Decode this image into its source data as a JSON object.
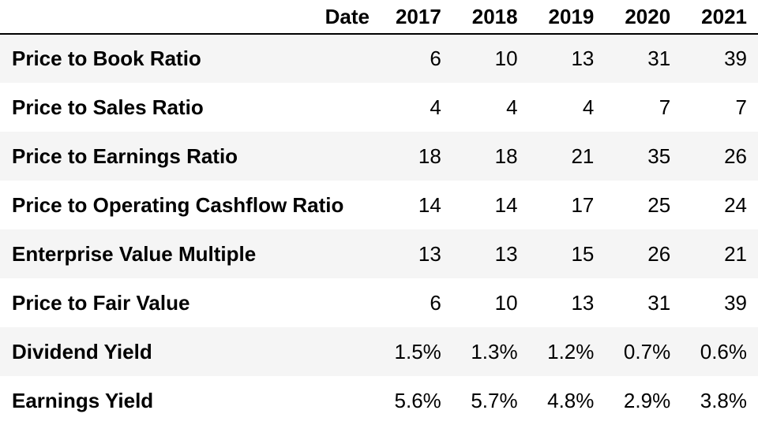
{
  "table": {
    "index_header": "Date",
    "columns": [
      "2017",
      "2018",
      "2019",
      "2020",
      "2021"
    ],
    "rows": [
      {
        "label": "Price to Book Ratio",
        "values": [
          "6",
          "10",
          "13",
          "31",
          "39"
        ]
      },
      {
        "label": "Price to Sales Ratio",
        "values": [
          "4",
          "4",
          "4",
          "7",
          "7"
        ]
      },
      {
        "label": "Price to Earnings Ratio",
        "values": [
          "18",
          "18",
          "21",
          "35",
          "26"
        ]
      },
      {
        "label": "Price to Operating Cashflow Ratio",
        "values": [
          "14",
          "14",
          "17",
          "25",
          "24"
        ]
      },
      {
        "label": "Enterprise Value Multiple",
        "values": [
          "13",
          "13",
          "15",
          "26",
          "21"
        ]
      },
      {
        "label": "Price to Fair Value",
        "values": [
          "6",
          "10",
          "13",
          "31",
          "39"
        ]
      },
      {
        "label": "Dividend Yield",
        "values": [
          "1.5%",
          "1.3%",
          "1.2%",
          "0.7%",
          "0.6%"
        ]
      },
      {
        "label": "Earnings Yield",
        "values": [
          "5.6%",
          "5.7%",
          "4.8%",
          "2.9%",
          "3.8%"
        ]
      }
    ]
  },
  "colors": {
    "stripe": "#f5f5f5",
    "background": "#ffffff",
    "text": "#000000",
    "header_rule": "#000000"
  }
}
